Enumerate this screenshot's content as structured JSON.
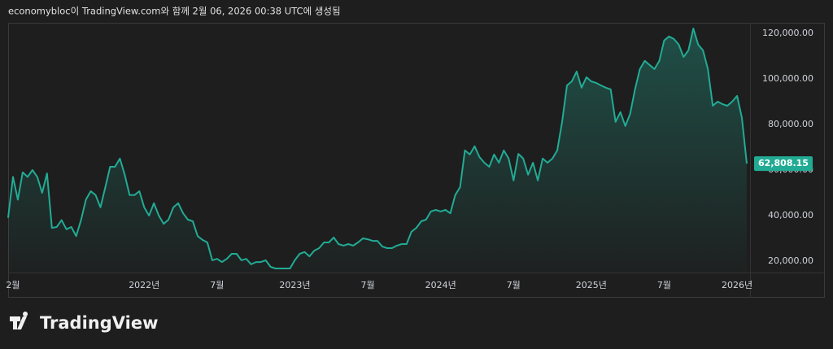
{
  "chart_data": {
    "type": "area-line",
    "caption": "economybloc이 TradingView.com와 함께 2월 06, 2026 00:38 UTC에 생성됨",
    "watermark": "TradingView",
    "color": "#22ab94",
    "grid": false,
    "ylim": [
      15000,
      124600
    ],
    "yticks": [
      {
        "value": 20000,
        "label": "20,000.00"
      },
      {
        "value": 40000,
        "label": "40,000.00"
      },
      {
        "value": 60000,
        "label": "60,000.00"
      },
      {
        "value": 80000,
        "label": "80,000.00"
      },
      {
        "value": 100000,
        "label": "100,000.00"
      },
      {
        "value": 120000,
        "label": "120,000.00"
      }
    ],
    "last_price_label": "62,808.15",
    "categories": [
      null,
      "2월",
      null,
      null,
      null,
      null,
      null,
      null,
      null,
      null,
      null,
      null,
      null,
      null,
      null,
      null,
      null,
      null,
      null,
      null,
      null,
      null,
      null,
      null,
      null,
      null,
      null,
      null,
      "2022년",
      null,
      null,
      null,
      null,
      null,
      null,
      null,
      null,
      null,
      null,
      null,
      null,
      null,
      null,
      "7월",
      null,
      null,
      null,
      null,
      null,
      null,
      null,
      null,
      null,
      null,
      null,
      null,
      null,
      null,
      null,
      "2023년",
      null,
      null,
      null,
      null,
      null,
      null,
      null,
      null,
      null,
      null,
      null,
      null,
      null,
      null,
      "7월",
      null,
      null,
      null,
      null,
      null,
      null,
      null,
      null,
      null,
      null,
      null,
      null,
      null,
      null,
      "2024년",
      null,
      null,
      null,
      null,
      null,
      null,
      null,
      null,
      null,
      null,
      null,
      null,
      null,
      null,
      "7월",
      null,
      null,
      null,
      null,
      null,
      null,
      null,
      null,
      null,
      null,
      null,
      null,
      null,
      null,
      null,
      "2025년",
      null,
      null,
      null,
      null,
      null,
      null,
      null,
      null,
      null,
      null,
      null,
      null,
      null,
      null,
      "7월",
      null,
      null,
      null,
      null,
      null,
      null,
      null,
      null,
      null,
      null,
      null,
      null,
      null,
      null,
      "2026년",
      null,
      null
    ],
    "values": [
      39000,
      57000,
      47000,
      59000,
      57000,
      60000,
      57000,
      50000,
      58500,
      34600,
      35000,
      38000,
      34000,
      35000,
      31000,
      38000,
      47000,
      50700,
      49000,
      43600,
      52500,
      61400,
      61400,
      65000,
      57800,
      49000,
      49000,
      50700,
      43600,
      40000,
      45400,
      40000,
      36400,
      38200,
      43600,
      45400,
      41000,
      38200,
      37500,
      31000,
      29300,
      28200,
      20400,
      21000,
      19600,
      21000,
      23200,
      23200,
      20400,
      21000,
      18600,
      19600,
      19600,
      20400,
      17500,
      16800,
      16800,
      16800,
      16800,
      20400,
      23200,
      24000,
      22100,
      24600,
      25700,
      28200,
      28200,
      30400,
      27500,
      26800,
      27500,
      26800,
      28200,
      30000,
      29600,
      28900,
      28900,
      26400,
      25700,
      25700,
      26800,
      27500,
      27500,
      32900,
      34600,
      37500,
      38200,
      41800,
      42500,
      41800,
      42500,
      41000,
      49000,
      52500,
      68600,
      66800,
      70400,
      65700,
      63200,
      61400,
      66800,
      63200,
      68600,
      65000,
      55400,
      67100,
      65000,
      57900,
      63200,
      55400,
      65000,
      63200,
      65000,
      68600,
      81100,
      97100,
      98900,
      103200,
      96100,
      100700,
      98900,
      98200,
      97100,
      96100,
      95400,
      81100,
      85400,
      79300,
      84600,
      95400,
      104300,
      107900,
      106100,
      104300,
      107900,
      116800,
      118600,
      117500,
      115000,
      109600,
      112500,
      122100,
      115000,
      112500,
      104300,
      88200,
      90000,
      88900,
      88200,
      90000,
      92500,
      82900,
      62808.15
    ]
  }
}
